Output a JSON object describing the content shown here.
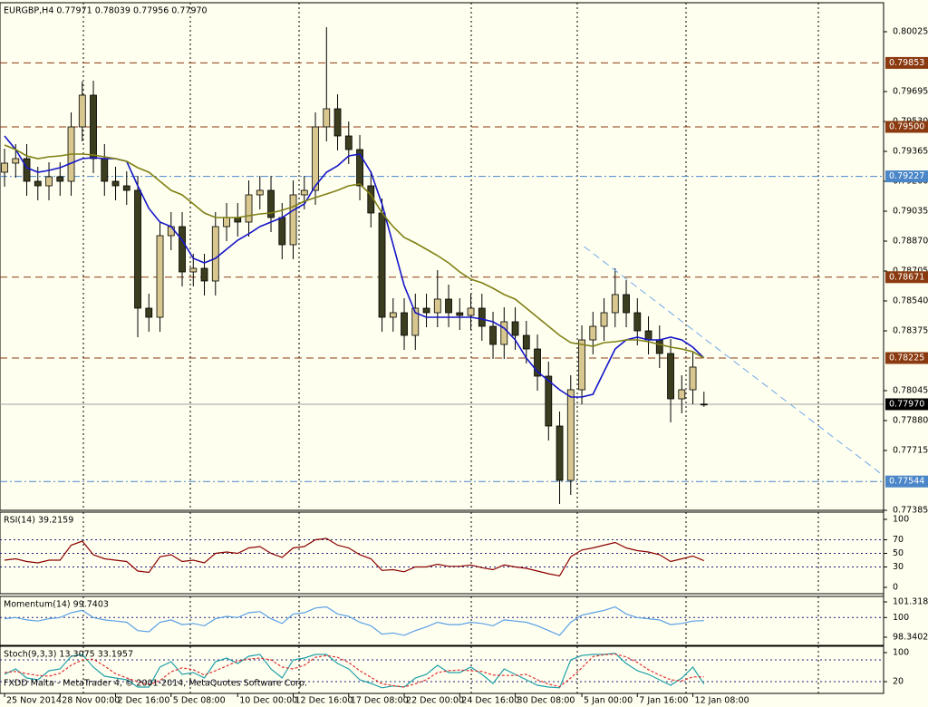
{
  "footer": "FXDD Malta - MetaTrader 4, © 2001-2014, MetaQuotes Software Corp.",
  "chart_data": [
    {
      "type": "candlestick",
      "title": "EURGBP,H4  0.77971 0.78039 0.77956 0.77970",
      "categories": [
        "25 Nov 2014",
        null,
        null,
        null,
        null,
        "28 Nov 00:00",
        null,
        null,
        null,
        null,
        "2 Dec 16:00",
        null,
        null,
        null,
        null,
        "5 Dec 08:00",
        null,
        null,
        null,
        null,
        null,
        "10 Dec 00:00",
        null,
        null,
        null,
        null,
        "12 Dec 16:00",
        null,
        null,
        null,
        null,
        "17 Dec 08:00",
        null,
        null,
        null,
        null,
        "22 Dec 00:00",
        null,
        null,
        null,
        null,
        "24 Dec 16:00",
        null,
        null,
        null,
        null,
        "30 Dec 08:00",
        null,
        null,
        null,
        null,
        null,
        "5 Jan 00:00",
        null,
        null,
        null,
        null,
        "7 Jan 16:00",
        null,
        null,
        null,
        null,
        "12 Jan 08:00",
        null
      ],
      "open": [
        0.7925,
        0.793,
        0.79325,
        0.792,
        0.79175,
        0.79225,
        0.792,
        0.795,
        0.79675,
        0.79325,
        0.792,
        0.79175,
        0.7915,
        0.785,
        0.7845,
        0.789,
        0.7895,
        0.787,
        0.7872,
        0.7865,
        0.7895,
        0.79,
        0.78975,
        0.79125,
        0.7915,
        0.79,
        0.7885,
        0.79125,
        0.7915,
        0.795,
        0.796,
        0.7945,
        0.79375,
        0.79175,
        0.79025,
        0.7845,
        0.78475,
        0.7835,
        0.785,
        0.78475,
        0.7855,
        0.78475,
        0.7846,
        0.785,
        0.784,
        0.783,
        0.78425,
        0.7835,
        0.78275,
        0.78125,
        0.7785,
        0.7755,
        0.7805,
        0.78325,
        0.784,
        0.78475,
        0.78575,
        0.78475,
        0.78375,
        0.78325,
        0.7825,
        0.78,
        0.7805,
        0.77971
      ],
      "high": [
        0.7938,
        0.79405,
        0.79405,
        0.7928,
        0.79305,
        0.79305,
        0.7958,
        0.7975,
        0.79755,
        0.79405,
        0.7928,
        0.79255,
        0.7923,
        0.7858,
        0.7898,
        0.7903,
        0.7903,
        0.788,
        0.788,
        0.7903,
        0.7908,
        0.7908,
        0.79205,
        0.7923,
        0.7923,
        0.7908,
        0.79205,
        0.7923,
        0.7958,
        0.8005,
        0.7968,
        0.7953,
        0.79455,
        0.79255,
        0.79105,
        0.78555,
        0.78555,
        0.7858,
        0.7858,
        0.7871,
        0.7863,
        0.78555,
        0.7858,
        0.7858,
        0.7848,
        0.78505,
        0.78505,
        0.7843,
        0.78355,
        0.78205,
        0.7793,
        0.7813,
        0.78405,
        0.7848,
        0.78555,
        0.7872,
        0.78655,
        0.78555,
        0.78455,
        0.78405,
        0.7833,
        0.7813,
        0.78255,
        0.78039
      ],
      "low": [
        0.7917,
        0.7922,
        0.7912,
        0.79095,
        0.79095,
        0.7912,
        0.7912,
        0.7942,
        0.79245,
        0.7912,
        0.79095,
        0.7907,
        0.7834,
        0.7837,
        0.7837,
        0.7882,
        0.7862,
        0.7862,
        0.7857,
        0.7857,
        0.7887,
        0.78895,
        0.78895,
        0.79045,
        0.7892,
        0.7877,
        0.7877,
        0.79045,
        0.7907,
        0.7942,
        0.7937,
        0.79295,
        0.79095,
        0.78945,
        0.7837,
        0.7837,
        0.7827,
        0.7827,
        0.78395,
        0.78395,
        0.78395,
        0.7838,
        0.7838,
        0.7832,
        0.7822,
        0.7822,
        0.7827,
        0.78195,
        0.78045,
        0.7777,
        0.7742,
        0.7747,
        0.7797,
        0.78245,
        0.7832,
        0.78395,
        0.78395,
        0.78295,
        0.78245,
        0.7817,
        0.7787,
        0.7792,
        0.7797,
        0.77956
      ],
      "close": [
        0.793,
        0.79325,
        0.792,
        0.79175,
        0.79225,
        0.792,
        0.795,
        0.79675,
        0.79325,
        0.792,
        0.79175,
        0.7915,
        0.785,
        0.7845,
        0.789,
        0.7895,
        0.787,
        0.7872,
        0.7865,
        0.7895,
        0.79,
        0.78975,
        0.79125,
        0.7915,
        0.79,
        0.7885,
        0.79125,
        0.7915,
        0.795,
        0.796,
        0.7945,
        0.79375,
        0.79175,
        0.79025,
        0.7845,
        0.78475,
        0.7835,
        0.785,
        0.78475,
        0.7855,
        0.78475,
        0.7846,
        0.785,
        0.784,
        0.783,
        0.78425,
        0.7835,
        0.78275,
        0.78125,
        0.7785,
        0.7755,
        0.7805,
        0.78325,
        0.784,
        0.78475,
        0.78575,
        0.78475,
        0.78375,
        0.78325,
        0.7825,
        0.78,
        0.7805,
        0.78175,
        0.7797
      ],
      "up_color": "#d8c890",
      "down_color": "#3c3c1e",
      "wick_color": "#000000",
      "series": [
        {
          "color": "#1515c8",
          "values": [
            0.7945,
            0.79375,
            0.79275,
            0.7925,
            0.7926,
            0.79275,
            0.793,
            0.79325,
            0.7933,
            0.79325,
            0.79325,
            0.7931,
            0.79175,
            0.7905,
            0.78975,
            0.7895,
            0.78875,
            0.78775,
            0.7875,
            0.78775,
            0.78825,
            0.78875,
            0.7891,
            0.7895,
            0.78975,
            0.79,
            0.7904,
            0.79075,
            0.79175,
            0.7925,
            0.79285,
            0.7934,
            0.7935,
            0.7925,
            0.79075,
            0.7885,
            0.78625,
            0.78475,
            0.7845,
            0.7845,
            0.7845,
            0.7845,
            0.7845,
            0.7844,
            0.78425,
            0.7839,
            0.78325,
            0.78225,
            0.7815,
            0.781,
            0.7805,
            0.7801,
            0.7801,
            0.78025,
            0.7815,
            0.78275,
            0.78325,
            0.7834,
            0.78325,
            0.78325,
            0.7834,
            0.78325,
            0.78285,
            0.78225
          ]
        },
        {
          "color": "#808014",
          "values": [
            0.794,
            0.79375,
            0.7934,
            0.79325,
            0.79335,
            0.7934,
            0.7935,
            0.7935,
            0.79345,
            0.79335,
            0.79325,
            0.7931,
            0.79275,
            0.7925,
            0.792,
            0.7915,
            0.79125,
            0.79075,
            0.79025,
            0.79,
            0.79,
            0.79,
            0.7901,
            0.7902,
            0.79025,
            0.7904,
            0.7906,
            0.7909,
            0.7911,
            0.7913,
            0.7915,
            0.79175,
            0.79185,
            0.79125,
            0.79025,
            0.7895,
            0.7889,
            0.7886,
            0.78825,
            0.7879,
            0.7875,
            0.787,
            0.7866,
            0.7864,
            0.7861,
            0.78575,
            0.7855,
            0.785,
            0.7845,
            0.784,
            0.7835,
            0.7831,
            0.783,
            0.7829,
            0.7831,
            0.78315,
            0.78325,
            0.78325,
            0.78315,
            0.783,
            0.78285,
            0.78275,
            0.7826,
            0.78225
          ]
        }
      ],
      "levels": [
        {
          "value": 0.79853,
          "color": "#8b3a0f",
          "style": "dash"
        },
        {
          "value": 0.795,
          "label": "0.79500",
          "color": "#8b3a0f",
          "style": "dash"
        },
        {
          "value": 0.79227,
          "color": "#4a86c8",
          "style": "dashdot"
        },
        {
          "value": 0.78671,
          "color": "#8b3a0f",
          "style": "dash"
        },
        {
          "value": 0.78225,
          "color": "#8b3a0f",
          "style": "dash"
        },
        {
          "value": 0.7797,
          "label": "0.77970",
          "color": "#000000",
          "style": "solid"
        },
        {
          "value": 0.77544,
          "color": "#4a86c8",
          "style": "dashdot"
        }
      ],
      "trendline": {
        "x": [
          52.2,
          79.2
        ],
        "values": [
          0.7884,
          0.77575
        ],
        "color": "#6fa8e8"
      },
      "xlim": [
        -0.41,
        79.18
      ],
      "ylim": [
        0.77385,
        0.80185
      ],
      "yticks": [
        0.80025,
        0.79695,
        {
          "value": 0.7953,
          "label": "0.79530"
        },
        0.79365,
        {
          "value": 0.792,
          "label": "0.79200"
        },
        0.79035,
        {
          "value": 0.7887,
          "label": "0.78870"
        },
        0.78705,
        {
          "value": 0.7854,
          "label": "0.78540"
        },
        0.78375,
        0.78045,
        {
          "value": 0.7788,
          "label": "0.77880"
        },
        0.77715,
        0.77385
      ]
    },
    {
      "type": "line",
      "title": "RSI(14) 39.2159",
      "series": [
        {
          "color": "#8b0000",
          "values": [
            40,
            42,
            38,
            36,
            40,
            40,
            62,
            68,
            48,
            42,
            40,
            38,
            24,
            22,
            45,
            48,
            38,
            40,
            36,
            50,
            52,
            50,
            58,
            60,
            50,
            44,
            58,
            60,
            70,
            72,
            62,
            58,
            48,
            42,
            25,
            26,
            23,
            30,
            30,
            34,
            31,
            31,
            33,
            29,
            26,
            33,
            30,
            28,
            24,
            20,
            17,
            45,
            55,
            58,
            62,
            66,
            58,
            54,
            52,
            48,
            38,
            42,
            46,
            39.2159
          ]
        }
      ],
      "ylim": [
        -9.3,
        110.7
      ],
      "yticks": [
        0,
        30,
        50,
        70,
        100
      ],
      "grid_levels": [
        30,
        50,
        70
      ]
    },
    {
      "type": "line",
      "title": "Momentum(14) 99.7403",
      "series": [
        {
          "color": "#5aa0e6",
          "values": [
            99.9,
            100.0,
            99.8,
            99.7,
            99.9,
            100.0,
            100.4,
            100.6,
            100.0,
            99.8,
            99.7,
            99.6,
            98.9,
            98.8,
            99.6,
            99.8,
            99.4,
            99.5,
            99.3,
            99.9,
            100.1,
            100.0,
            100.4,
            100.5,
            99.9,
            99.5,
            100.3,
            100.4,
            100.8,
            100.9,
            100.3,
            100.1,
            99.6,
            99.3,
            98.6,
            98.7,
            98.5,
            98.9,
            99.2,
            99.6,
            99.4,
            99.4,
            99.6,
            99.5,
            99.3,
            99.8,
            99.7,
            99.6,
            99.3,
            98.9,
            98.5,
            99.6,
            100.2,
            100.4,
            100.6,
            100.9,
            100.3,
            100.0,
            99.9,
            99.8,
            99.4,
            99.5,
            99.7,
            99.7403
          ]
        }
      ],
      "ylim": [
        97.65,
        101.78
      ],
      "yticks": [
        98.3402,
        100,
        101.3185
      ],
      "grid_levels": [
        100
      ]
    },
    {
      "type": "line",
      "title": "Stoch(9,3,3) 13.3075 33.1957",
      "series": [
        {
          "color": "#20a0a8",
          "values": [
            40,
            55,
            30,
            25,
            50,
            55,
            90,
            95,
            60,
            35,
            30,
            25,
            5,
            5,
            60,
            75,
            40,
            45,
            30,
            75,
            85,
            70,
            90,
            95,
            55,
            30,
            80,
            85,
            95,
            95,
            70,
            55,
            25,
            15,
            3,
            8,
            5,
            30,
            40,
            65,
            45,
            45,
            60,
            40,
            15,
            55,
            40,
            25,
            10,
            5,
            3,
            80,
            92,
            95,
            95,
            98,
            70,
            50,
            40,
            25,
            10,
            30,
            60,
            13.3075
          ]
        },
        {
          "color": "#e03030",
          "dash": true,
          "values": [
            45,
            48,
            42,
            37,
            35,
            43,
            65,
            80,
            82,
            63,
            42,
            30,
            20,
            12,
            23,
            47,
            58,
            53,
            38,
            50,
            63,
            77,
            82,
            85,
            80,
            60,
            55,
            65,
            87,
            92,
            87,
            73,
            50,
            32,
            14,
            9,
            5,
            14,
            25,
            45,
            50,
            52,
            50,
            48,
            38,
            37,
            37,
            40,
            25,
            13,
            6,
            30,
            58,
            89,
            94,
            96,
            88,
            73,
            53,
            38,
            25,
            22,
            33,
            33.1957
          ]
        }
      ],
      "ylim": [
        -12.5,
        117.5
      ],
      "yticks": [
        20,
        100
      ],
      "grid_levels": [
        20,
        80
      ]
    }
  ]
}
